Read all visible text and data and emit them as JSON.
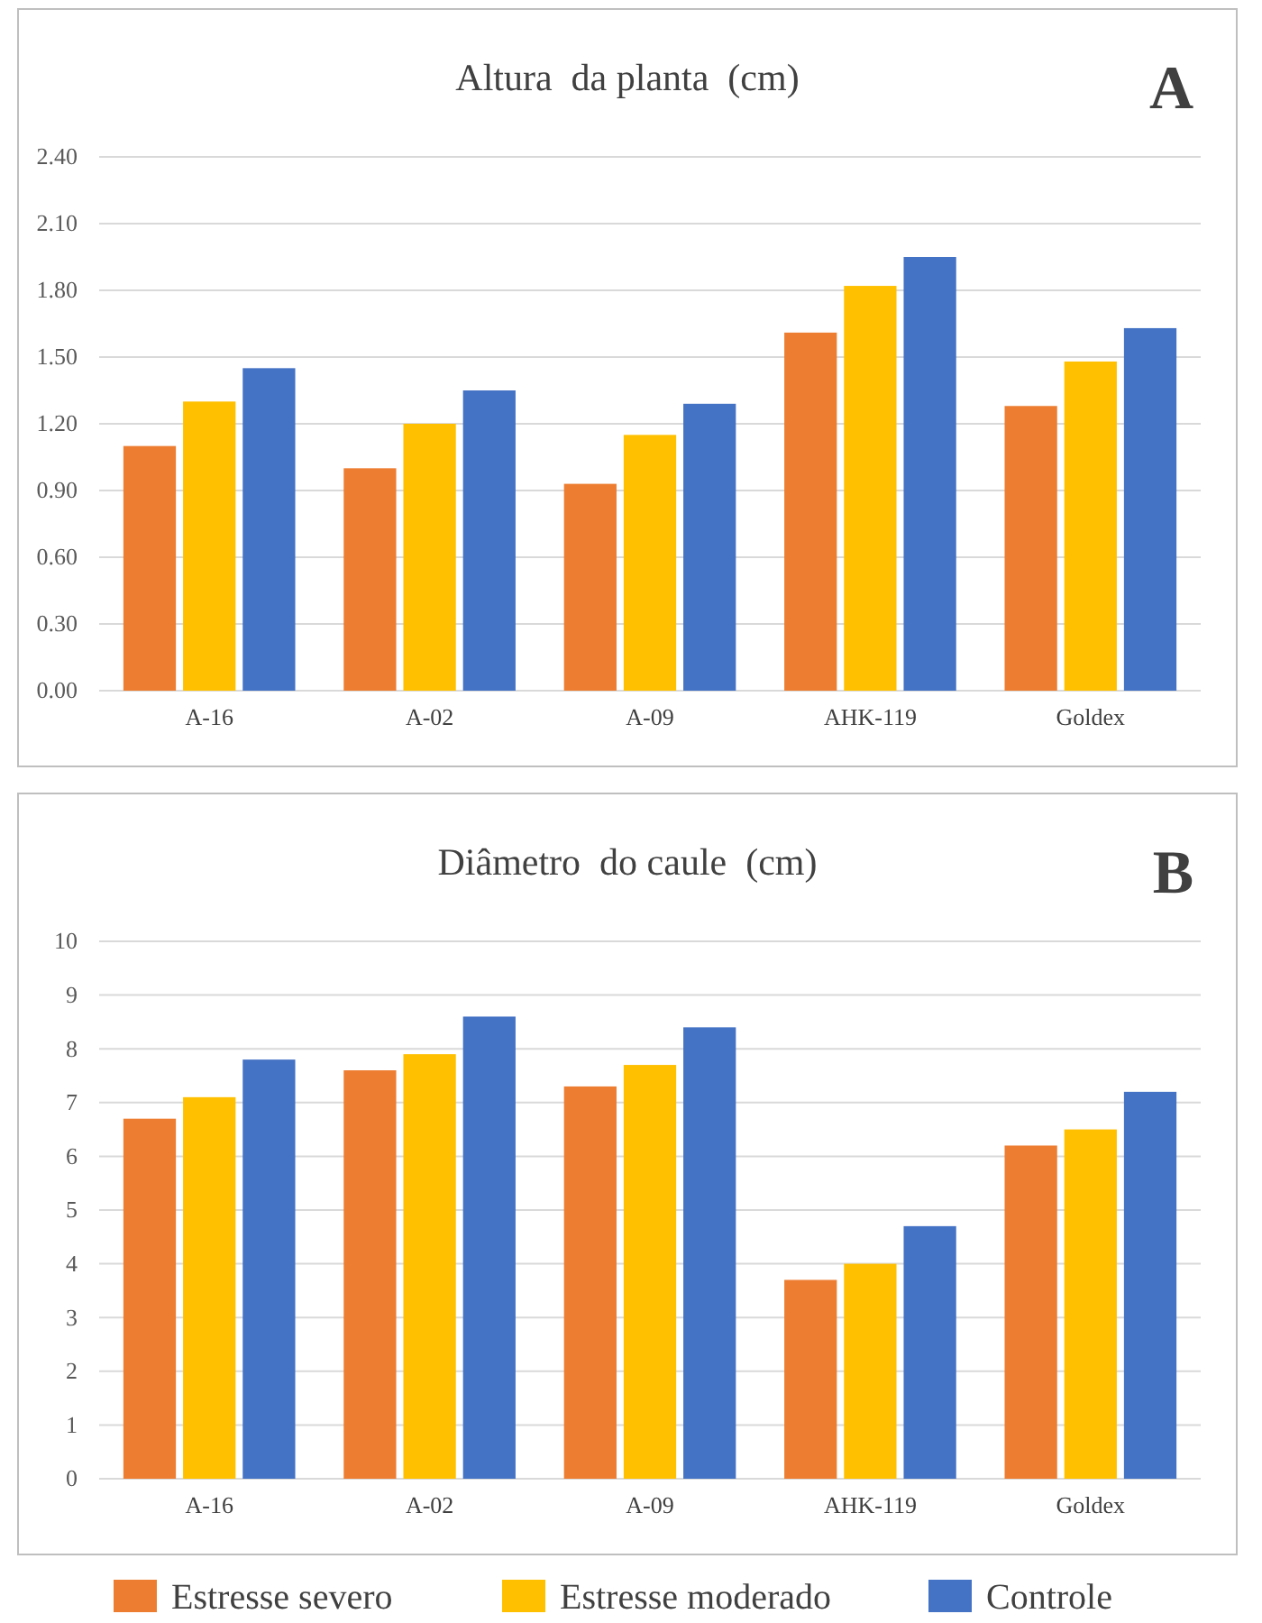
{
  "chart_data": [
    {
      "type": "bar",
      "title": "Altura  da planta  (cm)",
      "annotations": [
        "A"
      ],
      "categories": [
        "A-16",
        "A-02",
        "A-09",
        "AHK-119",
        "Goldex"
      ],
      "ylim": [
        0,
        2.4
      ],
      "yticks": [
        {
          "value": 0,
          "label": "0.00"
        },
        {
          "value": 0.3,
          "label": "0.30"
        },
        {
          "value": 0.6,
          "label": "0.60"
        },
        {
          "value": 0.9,
          "label": "0.90"
        },
        {
          "value": 1.2,
          "label": "1.20"
        },
        {
          "value": 1.5,
          "label": "1.50"
        },
        {
          "value": 1.8,
          "label": "1.80"
        },
        {
          "value": 2.1,
          "label": "2.10"
        },
        {
          "value": 2.4,
          "label": "2.40"
        }
      ],
      "grid": "y",
      "series": [
        {
          "color": "#ed7d31",
          "values": [
            1.1,
            1.0,
            0.93,
            1.61,
            1.28
          ]
        },
        {
          "color": "#ffc000",
          "values": [
            1.3,
            1.2,
            1.15,
            1.82,
            1.48
          ]
        },
        {
          "color": "#4472c4",
          "values": [
            1.45,
            1.35,
            1.29,
            1.95,
            1.63
          ]
        }
      ]
    },
    {
      "type": "bar",
      "title": "Diâmetro  do caule  (cm)",
      "annotations": [
        "B"
      ],
      "categories": [
        "A-16",
        "A-02",
        "A-09",
        "AHK-119",
        "Goldex"
      ],
      "ylim": [
        0,
        10
      ],
      "yticks": [
        0,
        1,
        2,
        3,
        4,
        5,
        6,
        7,
        8,
        9,
        10
      ],
      "grid": "y",
      "legend": "bottom",
      "series": [
        {
          "name": "Estresse severo",
          "color": "#ed7d31",
          "values": [
            6.7,
            7.6,
            7.3,
            3.7,
            6.2
          ]
        },
        {
          "name": "Estresse moderado",
          "color": "#ffc000",
          "values": [
            7.1,
            7.9,
            7.7,
            4.0,
            6.5
          ]
        },
        {
          "name": "Controle",
          "color": "#4472c4",
          "values": [
            7.8,
            8.6,
            8.4,
            4.7,
            7.2
          ]
        }
      ]
    }
  ]
}
